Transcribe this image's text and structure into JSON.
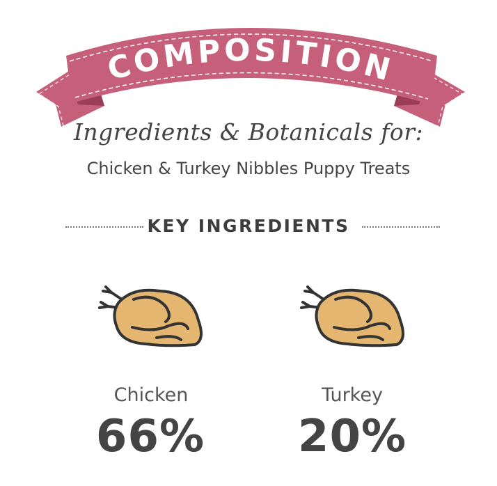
{
  "banner": {
    "title": "COMPOSITION",
    "color": "#c65f7a"
  },
  "subtitle": "Ingredients & Botanicals for:",
  "product_name": "Chicken & Turkey Nibbles Puppy Treats",
  "section_heading": "KEY INGREDIENTS",
  "ingredients": [
    {
      "name": "Chicken",
      "percent": "66%",
      "icon": "roast-chicken-icon"
    },
    {
      "name": "Turkey",
      "percent": "20%",
      "icon": "roast-chicken-icon"
    }
  ]
}
